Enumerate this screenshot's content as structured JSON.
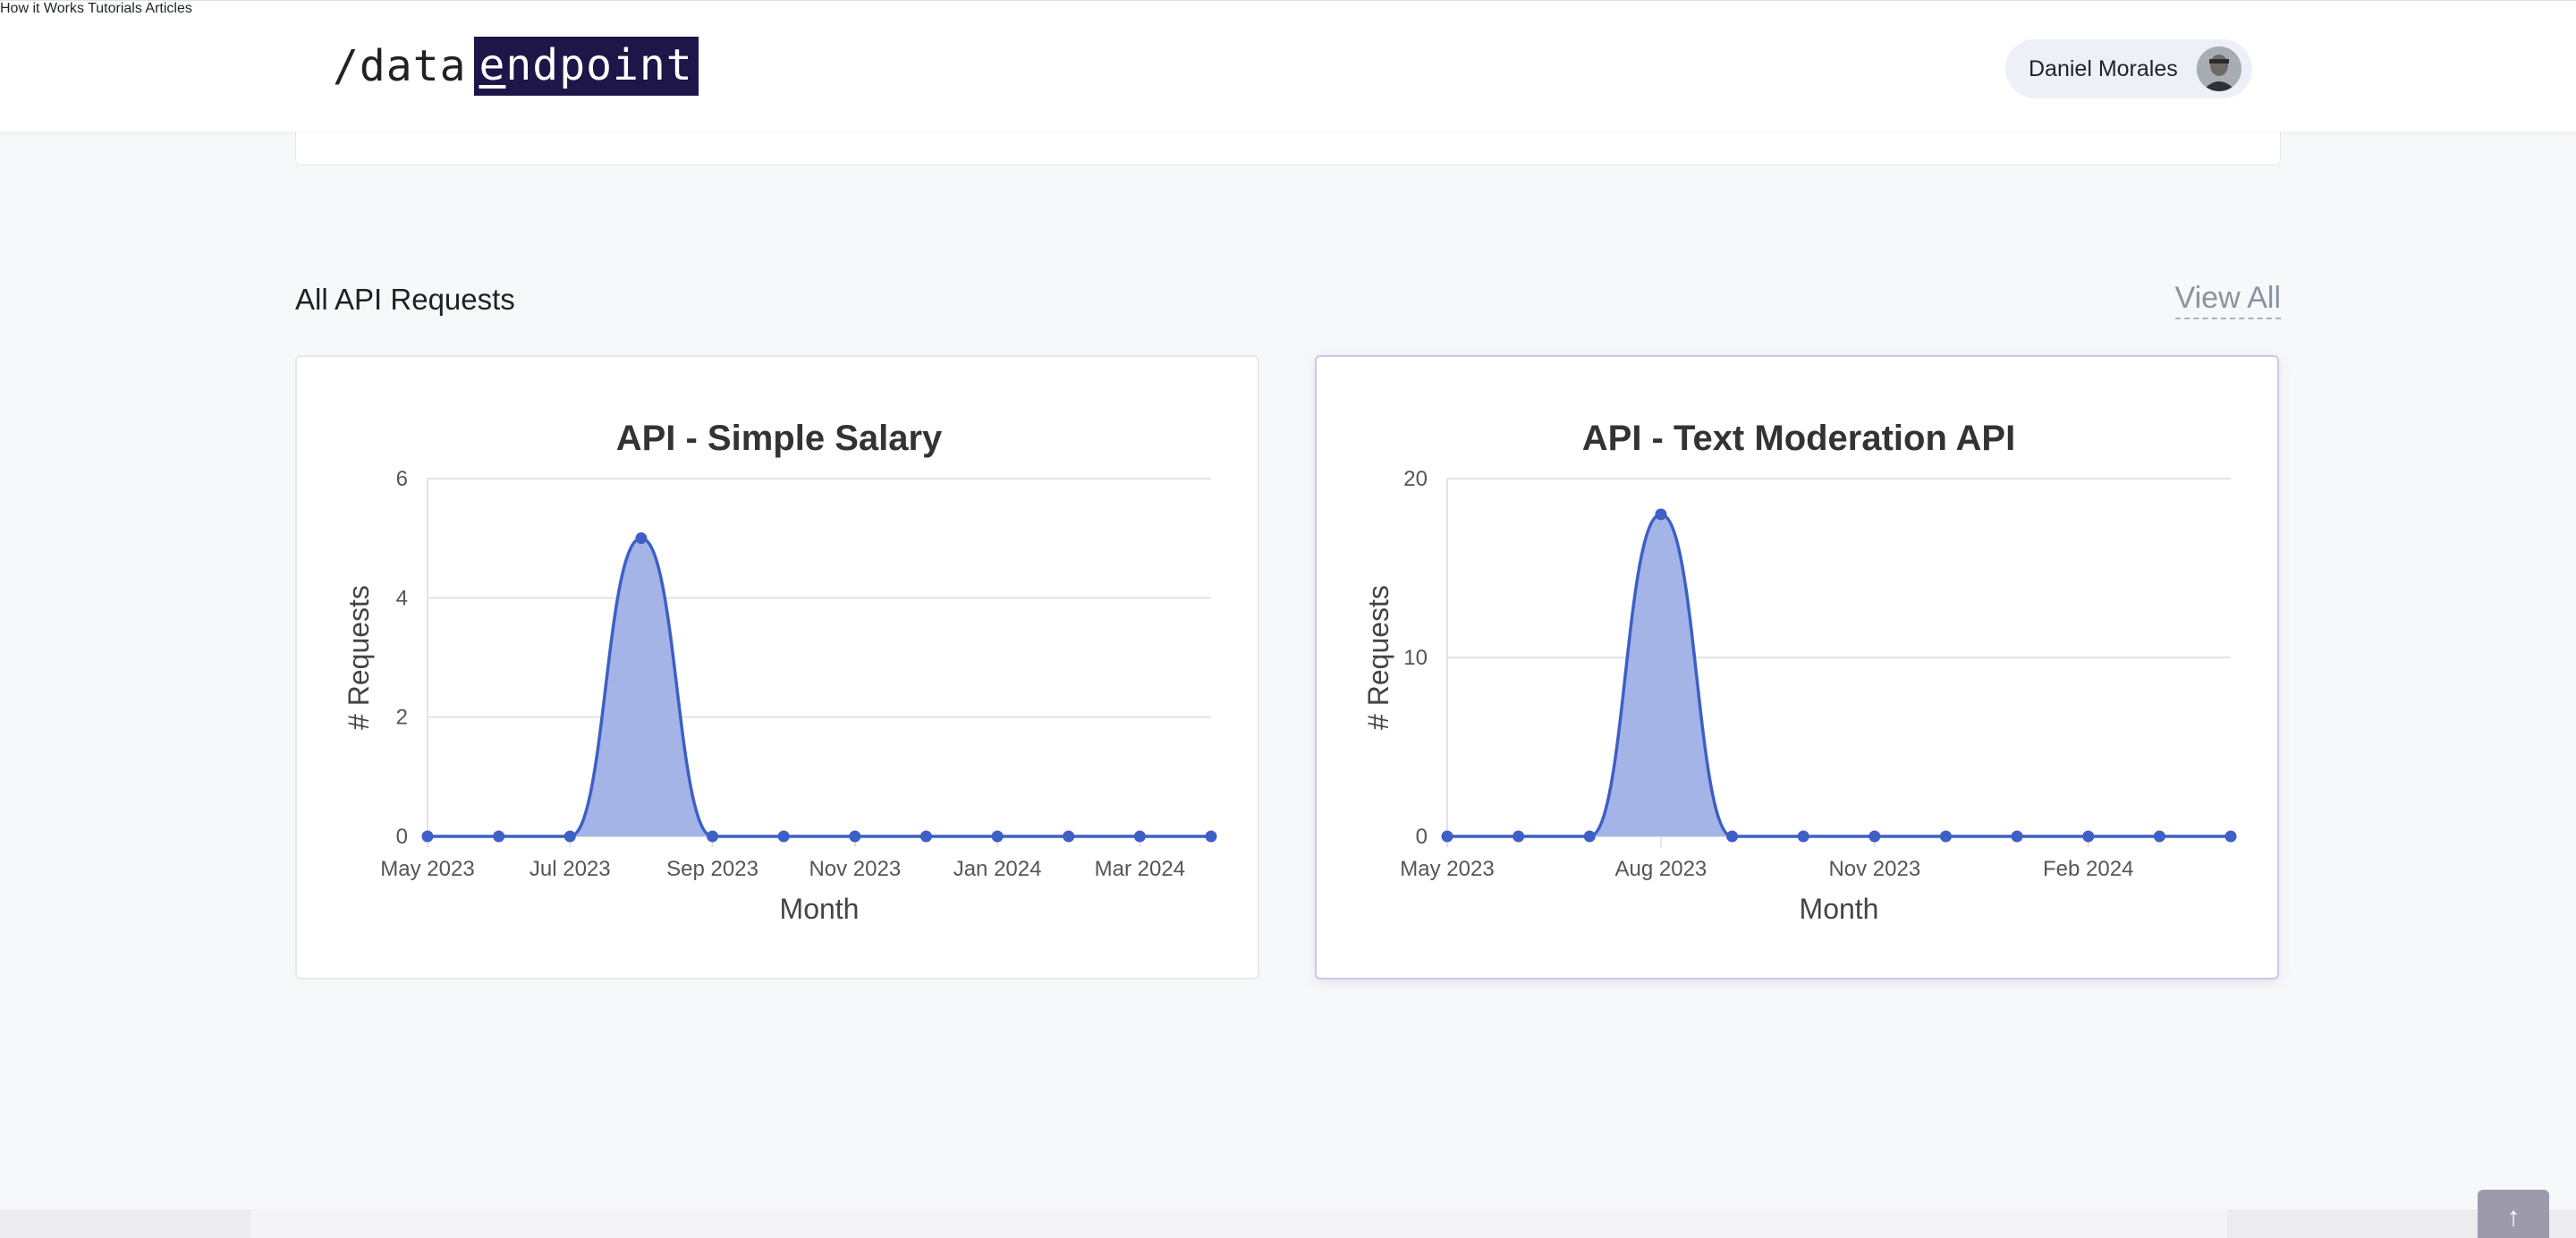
{
  "header": {
    "logo_prefix": "/data",
    "logo_highlight_first": "e",
    "logo_highlight_rest": "ndpoint",
    "nav": [
      "How it Works",
      "Tutorials",
      "Articles"
    ],
    "user_name": "Daniel Morales"
  },
  "section": {
    "title": "All API Requests",
    "view_all": "View All"
  },
  "colors": {
    "fill": "#9fb0e6",
    "line": "#3d5fc6",
    "brand": "#1e1548"
  },
  "chart_data": [
    {
      "type": "area",
      "title": "API - Simple Salary",
      "xlabel": "Month",
      "ylabel": "# Requests",
      "ylim": [
        0,
        6
      ],
      "yticks": [
        0,
        2,
        4,
        6
      ],
      "x": [
        "May 2023",
        "Jun 2023",
        "Jul 2023",
        "Aug 2023",
        "Sep 2023",
        "Oct 2023",
        "Nov 2023",
        "Dec 2023",
        "Jan 2024",
        "Feb 2024",
        "Mar 2024",
        "Apr 2024"
      ],
      "xtick_labels": [
        "May 2023",
        "Jul 2023",
        "Sep 2023",
        "Nov 2023",
        "Jan 2024",
        "Mar 2024"
      ],
      "series": [
        {
          "values": [
            0,
            0,
            0,
            5,
            0,
            0,
            0,
            0,
            0,
            0,
            0,
            0
          ]
        }
      ],
      "grid": true,
      "legend": "none"
    },
    {
      "type": "area",
      "title": "API - Text Moderation API",
      "xlabel": "Month",
      "ylabel": "# Requests",
      "ylim": [
        0,
        20
      ],
      "yticks": [
        0,
        10,
        20
      ],
      "x": [
        "May 2023",
        "Jun 2023",
        "Jul 2023",
        "Aug 2023",
        "Sep 2023",
        "Oct 2023",
        "Nov 2023",
        "Dec 2023",
        "Jan 2024",
        "Feb 2024",
        "Mar 2024",
        "Apr 2024"
      ],
      "xtick_labels": [
        "May 2023",
        "Aug 2023",
        "Nov 2023",
        "Feb 2024"
      ],
      "series": [
        {
          "values": [
            0,
            0,
            0,
            18,
            0,
            0,
            0,
            0,
            0,
            0,
            0,
            0
          ]
        }
      ],
      "grid": true,
      "legend": "none"
    }
  ]
}
